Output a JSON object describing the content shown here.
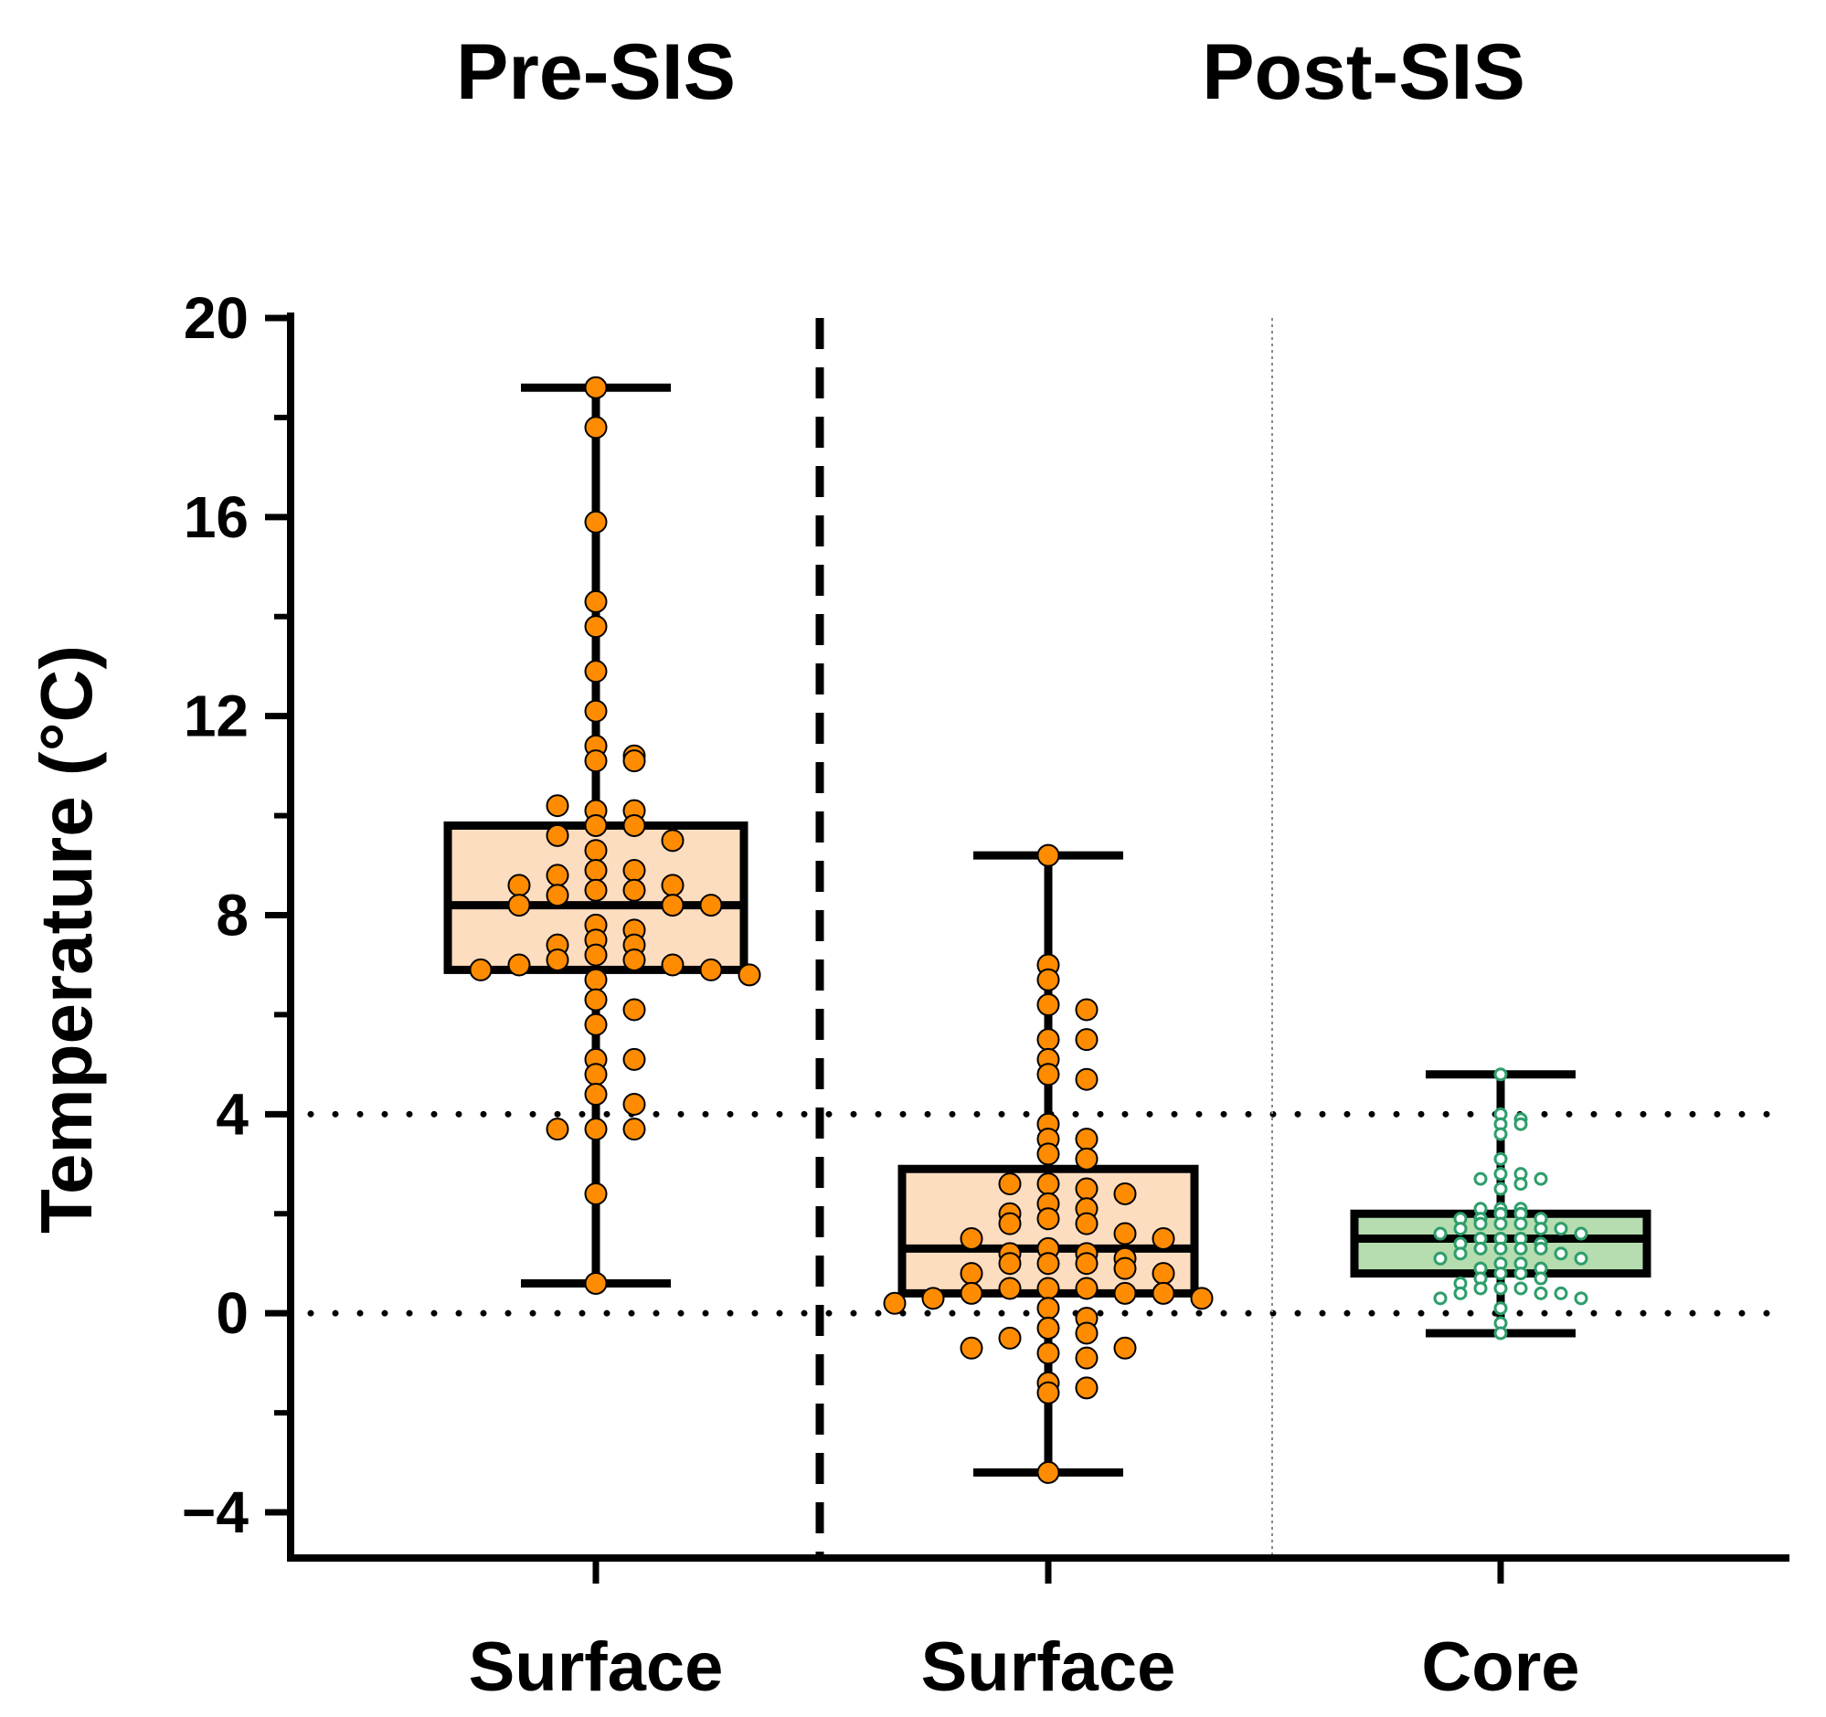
{
  "chart_data": {
    "type": "box",
    "ylabel": "Temperature (°C)",
    "ylim": [
      -4,
      20
    ],
    "yticks": [
      -4,
      0,
      4,
      8,
      12,
      16,
      20
    ],
    "ytick_labels": [
      "−4",
      "0",
      "4",
      "8",
      "12",
      "16",
      "20"
    ],
    "group_titles": [
      "Pre-SIS",
      "Post-SIS"
    ],
    "reference_lines": [
      0,
      4
    ],
    "categories": [
      "Surface",
      "Surface",
      "Core"
    ],
    "series": [
      {
        "group": "Pre-SIS",
        "category": "Surface",
        "min": 0.6,
        "q1": 6.9,
        "median": 8.2,
        "q3": 9.8,
        "max": 18.6,
        "box_color": "#FDDDC0",
        "point_color": "#FF8C00",
        "points": [
          18.6,
          17.8,
          15.9,
          14.3,
          13.8,
          12.9,
          12.1,
          11.4,
          11.1,
          11.2,
          11.1,
          10.1,
          10.1,
          10.2,
          9.8,
          9.8,
          9.6,
          9.5,
          9.3,
          8.9,
          8.9,
          8.8,
          8.6,
          8.6,
          8.5,
          8.5,
          8.4,
          8.2,
          8.2,
          8.2,
          7.8,
          7.7,
          7.5,
          7.4,
          7.4,
          7.2,
          7.1,
          7.1,
          7.0,
          7.0,
          6.9,
          6.9,
          6.8,
          6.7,
          6.3,
          6.1,
          5.8,
          5.1,
          5.1,
          4.8,
          4.4,
          4.2,
          3.7,
          3.7,
          3.7,
          2.4,
          0.6
        ]
      },
      {
        "group": "Post-SIS",
        "category": "Surface",
        "min": -3.2,
        "q1": 0.4,
        "median": 1.3,
        "q3": 2.9,
        "max": 9.2,
        "box_color": "#FDDDC0",
        "point_color": "#FF8C00",
        "points": [
          9.2,
          7.0,
          6.7,
          6.2,
          6.1,
          5.5,
          5.5,
          5.1,
          4.8,
          4.7,
          3.8,
          3.5,
          3.5,
          3.2,
          3.1,
          2.6,
          2.5,
          2.6,
          2.4,
          2.2,
          2.1,
          2.0,
          1.9,
          1.8,
          1.8,
          1.6,
          1.5,
          1.5,
          1.3,
          1.2,
          1.2,
          1.1,
          1.0,
          1.0,
          1.0,
          0.9,
          0.8,
          0.8,
          0.5,
          0.5,
          0.5,
          0.4,
          0.4,
          0.4,
          0.3,
          0.3,
          0.2,
          0.1,
          -0.1,
          -0.3,
          -0.4,
          -0.5,
          -0.7,
          -0.7,
          -0.8,
          -0.9,
          -1.4,
          -1.5,
          -1.6,
          -3.2
        ]
      },
      {
        "group": "Post-SIS",
        "category": "Core",
        "min": -0.4,
        "q1": 0.8,
        "median": 1.5,
        "q3": 2.0,
        "max": 4.8,
        "box_color": "#B5DDAF",
        "point_color": "#2E9E6B",
        "points": [
          4.8,
          4.0,
          3.9,
          3.8,
          3.8,
          3.6,
          3.1,
          2.8,
          2.8,
          2.7,
          2.7,
          2.5,
          2.6,
          2.1,
          2.1,
          2.1,
          2.0,
          2.0,
          1.9,
          1.9,
          1.9,
          1.8,
          1.8,
          1.8,
          1.7,
          1.7,
          1.7,
          1.6,
          1.6,
          1.5,
          1.5,
          1.5,
          1.4,
          1.4,
          1.3,
          1.3,
          1.3,
          1.3,
          1.2,
          1.2,
          1.1,
          1.1,
          1.0,
          1.0,
          0.9,
          0.9,
          0.8,
          0.8,
          0.7,
          0.7,
          0.6,
          0.5,
          0.5,
          0.5,
          0.4,
          0.4,
          0.4,
          0.3,
          0.3,
          0.1,
          -0.2,
          -0.4
        ]
      }
    ]
  }
}
